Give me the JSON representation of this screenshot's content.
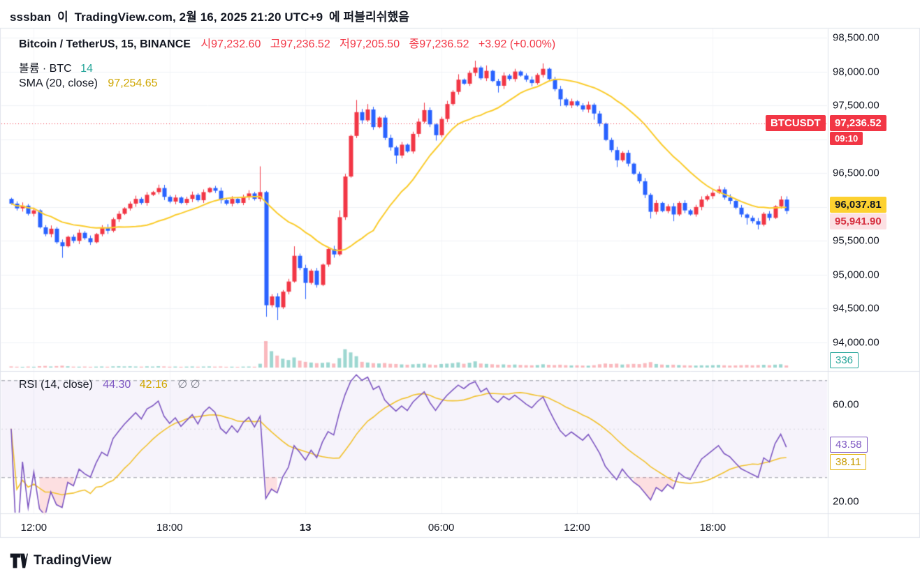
{
  "header": {
    "user": "sssban",
    "mid": "이",
    "source": "TradingView.com, 2월 16, 2025 21:20 UTC+9",
    "tail": "에 퍼블리쉬했음"
  },
  "legend": {
    "symbol": "Bitcoin / TetherUS, 15, BINANCE",
    "ohlc": {
      "open_label": "시",
      "open": "97,232.60",
      "high_label": "고",
      "high": "97,236.52",
      "low_label": "저",
      "low": "97,205.50",
      "close_label": "종",
      "close": "97,236.52",
      "change": "+3.92 (+0.00%)"
    },
    "volume_label": "볼륨 · BTC",
    "volume_ma": "14",
    "sma_label": "SMA (20, close)",
    "sma_value": "97,254.65",
    "rsi_label": "RSI (14, close)",
    "rsi_value": "44.30",
    "rsi_ma_value": "42.16",
    "rsi_extra": "∅ ∅"
  },
  "badges": {
    "symbol_tag": "BTCUSDT",
    "symbol_price": {
      "text": "97,236.52",
      "value": 97236.52
    },
    "countdown": "09:10",
    "sma": {
      "text": "96,037.81",
      "value": 96037.81
    },
    "last": {
      "text": "95,941.90",
      "value": 95941.9
    },
    "volume": {
      "text": "336",
      "value": 336
    },
    "rsi": {
      "text": "43.58",
      "value": 43.58
    },
    "rsi_ma": {
      "text": "38.11",
      "value": 38.11
    }
  },
  "footer": {
    "brand": "TradingView"
  },
  "colors": {
    "up": "#F23645",
    "down": "#2962FF",
    "sma_line": "#FBCC2C",
    "rsi_line": "#7E57C2",
    "rsi_ma_line": "#F2C230",
    "volume_up": "rgba(38,166,154,0.45)",
    "volume_down": "rgba(242,54,69,0.35)",
    "band_fill": "rgba(126,87,194,0.07)",
    "oversold_fill": "rgba(242,54,69,0.16)",
    "grid": "#F0F2F6",
    "border": "#E0E3EB",
    "text": "#131722",
    "muted": "#787B86",
    "purple": "#7E57C2",
    "teal": "#26A69A",
    "sma_text": "#CFA600",
    "badge_yellow": "#FDD130",
    "last_bg": "#FCE0E3",
    "last_text": "#D62F3F",
    "yellow_text": "#C79A00"
  },
  "chart_data": {
    "type": "candlestick",
    "symbol": "BTCUSDT",
    "exchange": "BINANCE",
    "interval_minutes": 15,
    "panes": [
      "price+volume",
      "rsi"
    ],
    "ylim_price": [
      94000,
      98500
    ],
    "rsi_levels": {
      "upper": 70,
      "middle": 50,
      "lower": 30
    },
    "sma_period": 20,
    "rsi_period": 14,
    "rsi_ma_period": 14,
    "price_gridlines": [
      98500,
      98000,
      97500,
      97000,
      96500,
      96000,
      95500,
      95000,
      94500,
      94000
    ],
    "price_axis_labels": [
      {
        "label": "98,500.00",
        "value": 98500
      },
      {
        "label": "98,000.00",
        "value": 98000
      },
      {
        "label": "97,500.00",
        "value": 97500
      },
      {
        "label": "96,500.00",
        "value": 96500
      },
      {
        "label": "95,500.00",
        "value": 95500
      },
      {
        "label": "95,000.00",
        "value": 95000
      },
      {
        "label": "94,500.00",
        "value": 94500
      },
      {
        "label": "94,000.00",
        "value": 94000
      }
    ],
    "rsi_axis_labels": [
      {
        "label": "60.00",
        "value": 60
      },
      {
        "label": "20.00",
        "value": 20
      }
    ],
    "time_axis": [
      {
        "label": "12:00",
        "index": 4
      },
      {
        "label": "18:00",
        "index": 28
      },
      {
        "label": "13",
        "index": 52,
        "major": true
      },
      {
        "label": "06:00",
        "index": 76
      },
      {
        "label": "12:00",
        "index": 100
      },
      {
        "label": "18:00",
        "index": 124
      }
    ],
    "candles": {
      "first_open": 96120,
      "default_wick": 38,
      "closes": [
        96050,
        95980,
        96020,
        95900,
        95950,
        95700,
        95600,
        95680,
        95480,
        95420,
        95560,
        95500,
        95620,
        95540,
        95480,
        95600,
        95700,
        95650,
        95820,
        95900,
        95980,
        96050,
        96120,
        96060,
        96180,
        96220,
        96280,
        96150,
        96080,
        96140,
        96060,
        96120,
        96180,
        96100,
        96220,
        96280,
        96240,
        96100,
        96050,
        96120,
        96060,
        96150,
        96200,
        96120,
        96220,
        94550,
        94680,
        94520,
        94750,
        94900,
        95280,
        95100,
        94880,
        95060,
        94850,
        95150,
        95380,
        95300,
        95850,
        96450,
        97050,
        97400,
        97280,
        97440,
        97180,
        97320,
        97020,
        96880,
        96760,
        96920,
        96820,
        97080,
        97260,
        97430,
        97220,
        97060,
        97300,
        97520,
        97700,
        97880,
        97820,
        97980,
        98060,
        97900,
        98010,
        97860,
        97790,
        97940,
        97890,
        98000,
        97940,
        97880,
        97830,
        97950,
        98040,
        97890,
        97740,
        97590,
        97500,
        97560,
        97500,
        97440,
        97510,
        97380,
        97230,
        96990,
        96840,
        96690,
        96800,
        96640,
        96490,
        96380,
        96180,
        95930,
        96060,
        95940,
        96010,
        95890,
        96060,
        95950,
        95890,
        96000,
        96110,
        96160,
        96210,
        96260,
        96140,
        96090,
        95990,
        95890,
        95840,
        95790,
        95740,
        95900,
        95840,
        96010,
        96110,
        95941.9
      ],
      "highs": {
        "26": 96330,
        "44": 96600,
        "50": 95420,
        "58": 95950,
        "61": 97580,
        "63": 97520,
        "73": 97540,
        "79": 97960,
        "82": 98160,
        "84": 98090,
        "94": 98120,
        "125": 96310,
        "136": 96160
      },
      "lows": {
        "9": 95250,
        "45": 94380,
        "47": 94330,
        "52": 94640,
        "68": 96640,
        "75": 96980,
        "86": 97690,
        "97": 97490,
        "103": 97290,
        "107": 96590,
        "113": 95830,
        "117": 95790,
        "130": 95740,
        "132": 95670
      }
    },
    "volumes": [
      180,
      140,
      120,
      160,
      130,
      220,
      260,
      170,
      240,
      300,
      200,
      150,
      140,
      160,
      130,
      150,
      170,
      140,
      190,
      210,
      180,
      200,
      170,
      150,
      190,
      160,
      210,
      180,
      140,
      160,
      130,
      150,
      170,
      140,
      160,
      180,
      150,
      170,
      130,
      140,
      120,
      150,
      160,
      140,
      600,
      4200,
      2600,
      1900,
      1400,
      1200,
      1600,
      1100,
      900,
      800,
      700,
      750,
      820,
      640,
      1500,
      2900,
      2400,
      1800,
      900,
      800,
      700,
      650,
      720,
      600,
      560,
      500,
      460,
      520,
      580,
      640,
      480,
      420,
      560,
      620,
      700,
      820,
      600,
      760,
      980,
      640,
      580,
      520,
      460,
      500,
      440,
      480,
      420,
      380,
      360,
      400,
      520,
      440,
      400,
      460,
      380,
      340,
      360,
      320,
      300,
      380,
      520,
      640,
      560,
      620,
      480,
      520,
      580,
      540,
      700,
      860,
      560,
      480,
      420,
      460,
      400,
      360,
      340,
      320,
      360,
      340,
      380,
      420,
      360,
      320,
      340,
      380,
      420,
      360,
      400,
      440,
      380,
      460,
      520,
      336
    ]
  }
}
